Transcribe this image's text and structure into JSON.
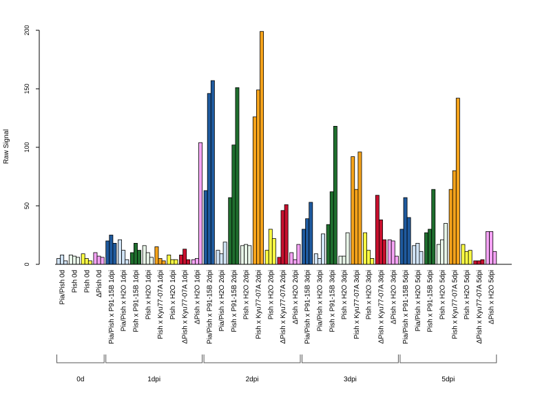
{
  "chart_data": {
    "type": "bar",
    "ylabel": "Raw Signal",
    "ylim": [
      0,
      200
    ],
    "yticks": [
      0,
      50,
      100,
      150,
      200
    ],
    "grid": false,
    "legend": "none",
    "categories": [
      {
        "label": "Pia/Pish 0d",
        "color": "#d0e3f5",
        "values": [
          5,
          8,
          3
        ]
      },
      {
        "label": "Pish 0d",
        "color": "#e8f5e8",
        "values": [
          8,
          7,
          6
        ]
      },
      {
        "label": "Pish 0d",
        "color": "#ffff44",
        "values": [
          9,
          5,
          3
        ]
      },
      {
        "label": "ΔPish 0d",
        "color": "#f5a3f5",
        "values": [
          10,
          7,
          6
        ]
      },
      {
        "label": "Pia/Pish x P91-15B 1dpi",
        "color": "#1f5a9e",
        "values": [
          20,
          25,
          18
        ]
      },
      {
        "label": "Pia/Pish x H2O 1dpi",
        "color": "#d0e3f5",
        "values": [
          21,
          12,
          4
        ]
      },
      {
        "label": "Pish x P91-15B 1dpi",
        "color": "#1f6e2e",
        "values": [
          10,
          18,
          12
        ]
      },
      {
        "label": "Pish x H2O 1dpi",
        "color": "#e8f5e8",
        "values": [
          16,
          10,
          6
        ]
      },
      {
        "label": "Pish x Kyu77-07A 1dpi",
        "color": "#f5a31b",
        "values": [
          15,
          5,
          3
        ]
      },
      {
        "label": "Pish x H2O 1dpi",
        "color": "#ffff44",
        "values": [
          8,
          4,
          4
        ]
      },
      {
        "label": "ΔPish x Kyu77-07A 1dpi",
        "color": "#c8102e",
        "values": [
          8,
          13,
          4
        ]
      },
      {
        "label": "ΔPish x H2O 1dpi",
        "color": "#f5a3f5",
        "values": [
          4,
          5,
          104
        ]
      },
      {
        "label": "Pia/Pish x P91-15B 2dpi",
        "color": "#1f5a9e",
        "values": [
          63,
          146,
          157
        ]
      },
      {
        "label": "Pia/Pish x H2O 2dpi",
        "color": "#d0e3f5",
        "values": [
          12,
          9,
          19
        ]
      },
      {
        "label": "Pish x P91-15B 2dpi",
        "color": "#1f6e2e",
        "values": [
          57,
          102,
          151
        ]
      },
      {
        "label": "Pish x H2O 2dpi",
        "color": "#e8f5e8",
        "values": [
          16,
          17,
          16
        ]
      },
      {
        "label": "Pish x Kyu77-07A 2dpi",
        "color": "#f5a31b",
        "values": [
          126,
          149,
          199
        ]
      },
      {
        "label": "Pish x H2O 2dpi",
        "color": "#ffff44",
        "values": [
          12,
          30,
          22
        ]
      },
      {
        "label": "ΔPish x Kyu77-07A 2dpi",
        "color": "#c8102e",
        "values": [
          6,
          46,
          51
        ]
      },
      {
        "label": "ΔPish x H2O 2dpi",
        "color": "#f5a3f5",
        "values": [
          10,
          4,
          17
        ]
      },
      {
        "label": "Pia/Pish x P91-15B 3dpi",
        "color": "#1f5a9e",
        "values": [
          30,
          39,
          53
        ]
      },
      {
        "label": "Pia/Pish x H2O 3dpi",
        "color": "#d0e3f5",
        "values": [
          9,
          5,
          26
        ]
      },
      {
        "label": "Pish x P91-15B 3dpi",
        "color": "#1f6e2e",
        "values": [
          34,
          62,
          118
        ]
      },
      {
        "label": "Pish x H2O 3dpi",
        "color": "#e8f5e8",
        "values": [
          7,
          7,
          27
        ]
      },
      {
        "label": "Pish x Kyu77-07A 3dpi",
        "color": "#f5a31b",
        "values": [
          92,
          64,
          96
        ]
      },
      {
        "label": "Pish x H2O 3dpi",
        "color": "#ffff44",
        "values": [
          27,
          12,
          5
        ]
      },
      {
        "label": "ΔPish x Kyu77-07A 3dpi",
        "color": "#c8102e",
        "values": [
          59,
          38,
          21
        ]
      },
      {
        "label": "ΔPish x H2O 3dpi",
        "color": "#f5a3f5",
        "values": [
          21,
          20,
          7
        ]
      },
      {
        "label": "Pia/Pish x P91-15B 5dpi",
        "color": "#1f5a9e",
        "values": [
          30,
          57,
          40
        ]
      },
      {
        "label": "Pia/Pish x H2O 5dpi",
        "color": "#d0e3f5",
        "values": [
          16,
          18,
          11
        ]
      },
      {
        "label": "Pish x P91-15B 5dpi",
        "color": "#1f6e2e",
        "values": [
          27,
          30,
          64
        ]
      },
      {
        "label": "Pish x H2O 5dpi",
        "color": "#e8f5e8",
        "values": [
          17,
          21,
          35
        ]
      },
      {
        "label": "Pish x Kyu77-07A 5dpi",
        "color": "#f5a31b",
        "values": [
          64,
          80,
          142
        ]
      },
      {
        "label": "Pish x H2O 5dpi",
        "color": "#ffff44",
        "values": [
          17,
          11,
          12
        ]
      },
      {
        "label": "ΔPish x Kyu77-07A 5dpi",
        "color": "#c8102e",
        "values": [
          3,
          3,
          4
        ]
      },
      {
        "label": "ΔPish x H2O 5dpi",
        "color": "#f5a3f5",
        "values": [
          28,
          28,
          11
        ]
      }
    ],
    "groups": [
      {
        "label": "0d",
        "start": 0,
        "end": 3
      },
      {
        "label": "1dpi",
        "start": 4,
        "end": 11
      },
      {
        "label": "2dpi",
        "start": 12,
        "end": 19
      },
      {
        "label": "3dpi",
        "start": 20,
        "end": 27
      },
      {
        "label": "5dpi",
        "start": 28,
        "end": 35
      }
    ]
  }
}
